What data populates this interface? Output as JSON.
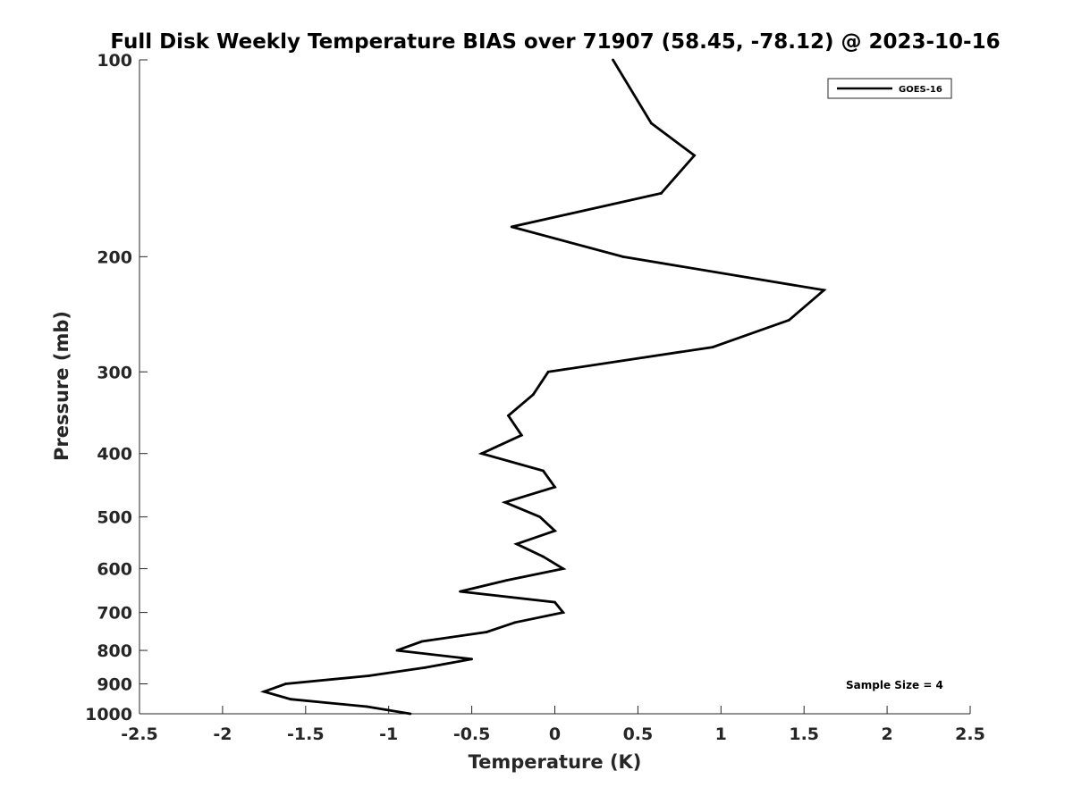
{
  "chart_data": {
    "type": "line",
    "title": "Full Disk Weekly Temperature BIAS over 71907 (58.45, -78.12) @ 2023-10-16",
    "xlabel": "Temperature (K)",
    "ylabel": "Pressure (mb)",
    "xlim": [
      -2.5,
      2.5
    ],
    "ylim": [
      100,
      1000
    ],
    "y_scale": "log",
    "y_reversed": true,
    "x_ticks": [
      "-2.5",
      "-2",
      "-1.5",
      "-1",
      "-0.5",
      "0",
      "0.5",
      "1",
      "1.5",
      "2",
      "2.5"
    ],
    "y_ticks": [
      "100",
      "200",
      "300",
      "400",
      "500",
      "600",
      "700",
      "800",
      "900",
      "1000"
    ],
    "grid": false,
    "legend_position": "top-right",
    "annotation": "Sample Size = 4",
    "series": [
      {
        "name": "GOES-16",
        "color": "#000000",
        "points": [
          {
            "p": 100,
            "t": 0.35
          },
          {
            "p": 125,
            "t": 0.58
          },
          {
            "p": 140,
            "t": 0.84
          },
          {
            "p": 160,
            "t": 0.64
          },
          {
            "p": 180,
            "t": -0.26
          },
          {
            "p": 200,
            "t": 0.41
          },
          {
            "p": 225,
            "t": 1.62
          },
          {
            "p": 250,
            "t": 1.41
          },
          {
            "p": 275,
            "t": 0.95
          },
          {
            "p": 300,
            "t": -0.04
          },
          {
            "p": 325,
            "t": -0.13
          },
          {
            "p": 350,
            "t": -0.28
          },
          {
            "p": 375,
            "t": -0.2
          },
          {
            "p": 400,
            "t": -0.44
          },
          {
            "p": 425,
            "t": -0.07
          },
          {
            "p": 450,
            "t": 0.0
          },
          {
            "p": 475,
            "t": -0.3
          },
          {
            "p": 500,
            "t": -0.09
          },
          {
            "p": 525,
            "t": 0.0
          },
          {
            "p": 550,
            "t": -0.23
          },
          {
            "p": 575,
            "t": -0.07
          },
          {
            "p": 600,
            "t": 0.05
          },
          {
            "p": 625,
            "t": -0.29
          },
          {
            "p": 650,
            "t": -0.57
          },
          {
            "p": 675,
            "t": 0.0
          },
          {
            "p": 700,
            "t": 0.05
          },
          {
            "p": 725,
            "t": -0.24
          },
          {
            "p": 750,
            "t": -0.41
          },
          {
            "p": 775,
            "t": -0.8
          },
          {
            "p": 800,
            "t": -0.95
          },
          {
            "p": 825,
            "t": -0.5
          },
          {
            "p": 850,
            "t": -0.78
          },
          {
            "p": 875,
            "t": -1.12
          },
          {
            "p": 900,
            "t": -1.62
          },
          {
            "p": 925,
            "t": -1.75
          },
          {
            "p": 950,
            "t": -1.59
          },
          {
            "p": 975,
            "t": -1.13
          },
          {
            "p": 1000,
            "t": -0.87
          }
        ]
      }
    ]
  }
}
